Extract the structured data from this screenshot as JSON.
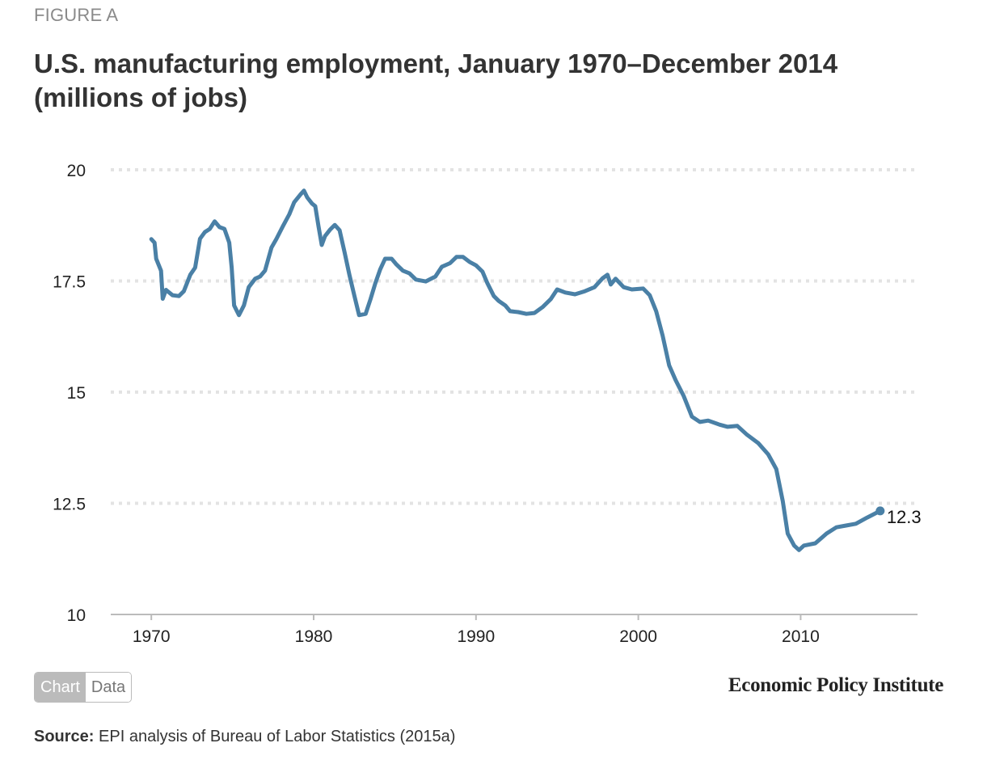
{
  "figure_label": "FIGURE A",
  "title": "U.S. manufacturing employment, January 1970–December 2014 (millions of jobs)",
  "toggle": {
    "chart": "Chart",
    "data": "Data"
  },
  "logo": "Economic Policy Institute",
  "source": {
    "label": "Source:",
    "text": " EPI analysis of Bureau of Labor Statistics (2015a)"
  },
  "colors": {
    "line": "#4a80a6",
    "grid": "#e3e3e3"
  },
  "chart_data": {
    "type": "line",
    "title": "U.S. manufacturing employment, January 1970–December 2014 (millions of jobs)",
    "xlabel": "",
    "ylabel": "",
    "xlim": [
      1967.5,
      2017.2
    ],
    "ylim": [
      10,
      20
    ],
    "yticks": [
      "10",
      "12.5",
      "15",
      "17.5",
      "20"
    ],
    "xticks": [
      "1970",
      "1980",
      "1990",
      "2000",
      "2010"
    ],
    "grid": true,
    "end_label": "12.3",
    "series": [
      {
        "name": "Manufacturing employment",
        "points": [
          [
            1970.0,
            18.44
          ],
          [
            1970.2,
            18.36
          ],
          [
            1970.3,
            18.0
          ],
          [
            1970.6,
            17.73
          ],
          [
            1970.7,
            17.1
          ],
          [
            1970.9,
            17.3
          ],
          [
            1971.1,
            17.24
          ],
          [
            1971.3,
            17.18
          ],
          [
            1971.7,
            17.16
          ],
          [
            1972.0,
            17.27
          ],
          [
            1972.4,
            17.64
          ],
          [
            1972.7,
            17.8
          ],
          [
            1973.0,
            18.45
          ],
          [
            1973.3,
            18.6
          ],
          [
            1973.6,
            18.67
          ],
          [
            1973.9,
            18.84
          ],
          [
            1974.2,
            18.71
          ],
          [
            1974.5,
            18.67
          ],
          [
            1974.8,
            18.36
          ],
          [
            1974.95,
            17.8
          ],
          [
            1975.1,
            16.95
          ],
          [
            1975.4,
            16.73
          ],
          [
            1975.7,
            16.95
          ],
          [
            1976.0,
            17.36
          ],
          [
            1976.4,
            17.55
          ],
          [
            1976.7,
            17.6
          ],
          [
            1977.0,
            17.73
          ],
          [
            1977.4,
            18.25
          ],
          [
            1977.7,
            18.44
          ],
          [
            1978.1,
            18.73
          ],
          [
            1978.5,
            19.0
          ],
          [
            1978.8,
            19.27
          ],
          [
            1979.2,
            19.45
          ],
          [
            1979.4,
            19.53
          ],
          [
            1979.6,
            19.38
          ],
          [
            1979.9,
            19.24
          ],
          [
            1980.1,
            19.18
          ],
          [
            1980.3,
            18.73
          ],
          [
            1980.5,
            18.31
          ],
          [
            1980.7,
            18.51
          ],
          [
            1981.0,
            18.65
          ],
          [
            1981.3,
            18.76
          ],
          [
            1981.6,
            18.64
          ],
          [
            1981.9,
            18.15
          ],
          [
            1982.2,
            17.64
          ],
          [
            1982.5,
            17.18
          ],
          [
            1982.8,
            16.73
          ],
          [
            1983.2,
            16.76
          ],
          [
            1983.5,
            17.09
          ],
          [
            1983.8,
            17.45
          ],
          [
            1984.1,
            17.76
          ],
          [
            1984.4,
            18.0
          ],
          [
            1984.8,
            18.0
          ],
          [
            1985.1,
            17.87
          ],
          [
            1985.5,
            17.73
          ],
          [
            1985.9,
            17.67
          ],
          [
            1986.3,
            17.53
          ],
          [
            1986.9,
            17.49
          ],
          [
            1987.5,
            17.6
          ],
          [
            1987.9,
            17.82
          ],
          [
            1988.4,
            17.9
          ],
          [
            1988.8,
            18.04
          ],
          [
            1989.2,
            18.04
          ],
          [
            1989.6,
            17.93
          ],
          [
            1990.0,
            17.85
          ],
          [
            1990.4,
            17.71
          ],
          [
            1990.7,
            17.45
          ],
          [
            1991.1,
            17.16
          ],
          [
            1991.4,
            17.05
          ],
          [
            1991.8,
            16.95
          ],
          [
            1992.1,
            16.82
          ],
          [
            1992.6,
            16.8
          ],
          [
            1993.1,
            16.76
          ],
          [
            1993.6,
            16.78
          ],
          [
            1994.1,
            16.91
          ],
          [
            1994.6,
            17.09
          ],
          [
            1995.0,
            17.31
          ],
          [
            1995.5,
            17.24
          ],
          [
            1996.1,
            17.2
          ],
          [
            1996.7,
            17.27
          ],
          [
            1997.3,
            17.36
          ],
          [
            1997.8,
            17.56
          ],
          [
            1998.1,
            17.64
          ],
          [
            1998.3,
            17.42
          ],
          [
            1998.6,
            17.55
          ],
          [
            1999.1,
            17.36
          ],
          [
            1999.6,
            17.31
          ],
          [
            2000.3,
            17.33
          ],
          [
            2000.7,
            17.18
          ],
          [
            2001.1,
            16.82
          ],
          [
            2001.5,
            16.27
          ],
          [
            2001.9,
            15.6
          ],
          [
            2002.3,
            15.27
          ],
          [
            2002.8,
            14.91
          ],
          [
            2003.3,
            14.45
          ],
          [
            2003.8,
            14.33
          ],
          [
            2004.3,
            14.36
          ],
          [
            2005.0,
            14.27
          ],
          [
            2005.5,
            14.22
          ],
          [
            2006.1,
            14.24
          ],
          [
            2006.7,
            14.04
          ],
          [
            2007.4,
            13.85
          ],
          [
            2008.0,
            13.6
          ],
          [
            2008.5,
            13.27
          ],
          [
            2008.9,
            12.55
          ],
          [
            2009.2,
            11.82
          ],
          [
            2009.6,
            11.55
          ],
          [
            2009.9,
            11.45
          ],
          [
            2010.2,
            11.55
          ],
          [
            2010.9,
            11.6
          ],
          [
            2011.6,
            11.82
          ],
          [
            2012.2,
            11.96
          ],
          [
            2012.8,
            12.0
          ],
          [
            2013.4,
            12.04
          ],
          [
            2014.1,
            12.18
          ],
          [
            2014.9,
            12.33
          ]
        ]
      }
    ]
  }
}
